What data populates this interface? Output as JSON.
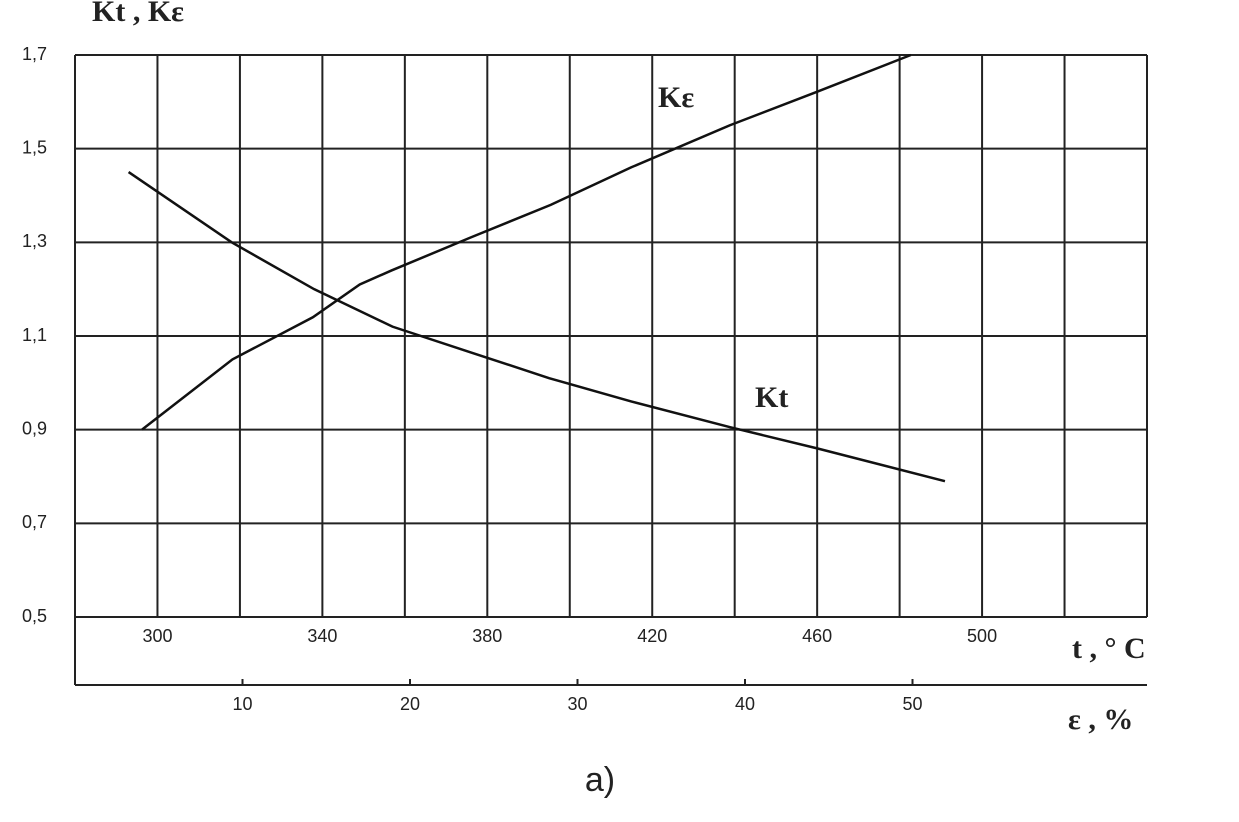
{
  "chart_data": {
    "type": "line",
    "ylabel": "Kt , Kε",
    "xlabel": "t , ° C",
    "x2label": "ε , %",
    "caption": "a)",
    "ylim": [
      0.5,
      1.7
    ],
    "yticks": [
      {
        "value": 0.5,
        "label": "0,5"
      },
      {
        "value": 0.7,
        "label": "0,7"
      },
      {
        "value": 0.9,
        "label": "0,9"
      },
      {
        "value": 1.1,
        "label": "1,1"
      },
      {
        "value": 1.3,
        "label": "1,3"
      },
      {
        "value": 1.5,
        "label": "1,5"
      },
      {
        "value": 1.7,
        "label": "1,7"
      }
    ],
    "xlim": [
      280,
      540
    ],
    "xticks": [
      300,
      340,
      380,
      420,
      460,
      500
    ],
    "xminor": [
      320,
      360,
      400,
      440,
      480,
      520
    ],
    "x2lim": [
      0,
      64
    ],
    "x2ticks": [
      10,
      20,
      30,
      40,
      50
    ],
    "grid": true,
    "series": [
      {
        "name": "Kt",
        "color": "#111111",
        "axis": "x",
        "x": [
          293,
          318,
          338,
          357,
          376,
          395,
          415,
          439,
          460,
          491
        ],
        "values": [
          1.45,
          1.3,
          1.2,
          1.12,
          1.065,
          1.01,
          0.96,
          0.905,
          0.86,
          0.79
        ]
      },
      {
        "name": "Kε",
        "color": "#111111",
        "axis": "x2",
        "x": [
          4,
          9.4,
          14.2,
          17,
          18.9,
          23.6,
          28.4,
          33.2,
          39.1,
          44.2,
          49.9
        ],
        "values": [
          0.9,
          1.05,
          1.14,
          1.21,
          1.24,
          1.31,
          1.38,
          1.46,
          1.55,
          1.62,
          1.7
        ]
      }
    ]
  }
}
